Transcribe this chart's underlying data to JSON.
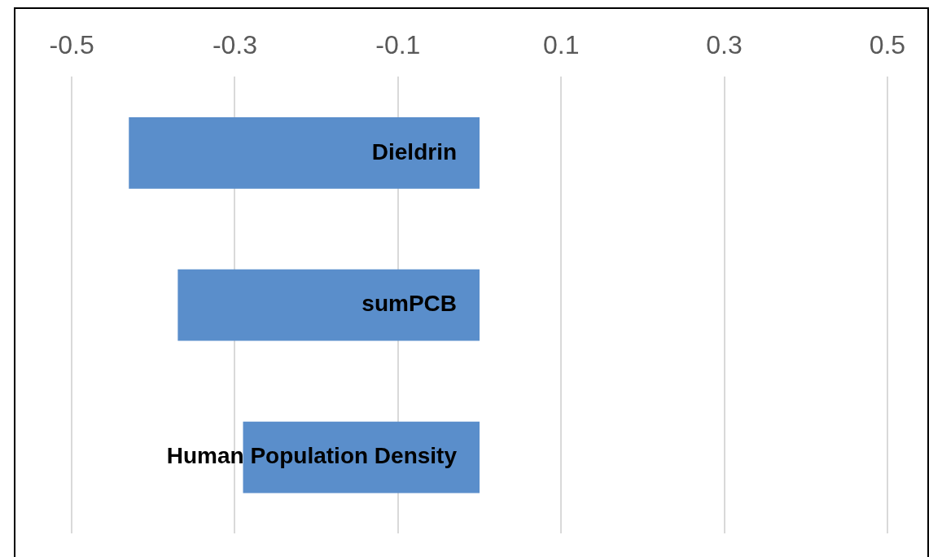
{
  "chart_data": {
    "type": "bar",
    "orientation": "horizontal",
    "categories": [
      "Dieldrin",
      "sumPCB",
      "Human Population Density"
    ],
    "values": [
      -0.43,
      -0.37,
      -0.29
    ],
    "color": "#5a8ecb",
    "xlim": [
      -0.57,
      0.55
    ],
    "xticks": [
      -0.5,
      -0.3,
      -0.1,
      0.1,
      0.3,
      0.5
    ],
    "grid": "x",
    "legend": false
  }
}
